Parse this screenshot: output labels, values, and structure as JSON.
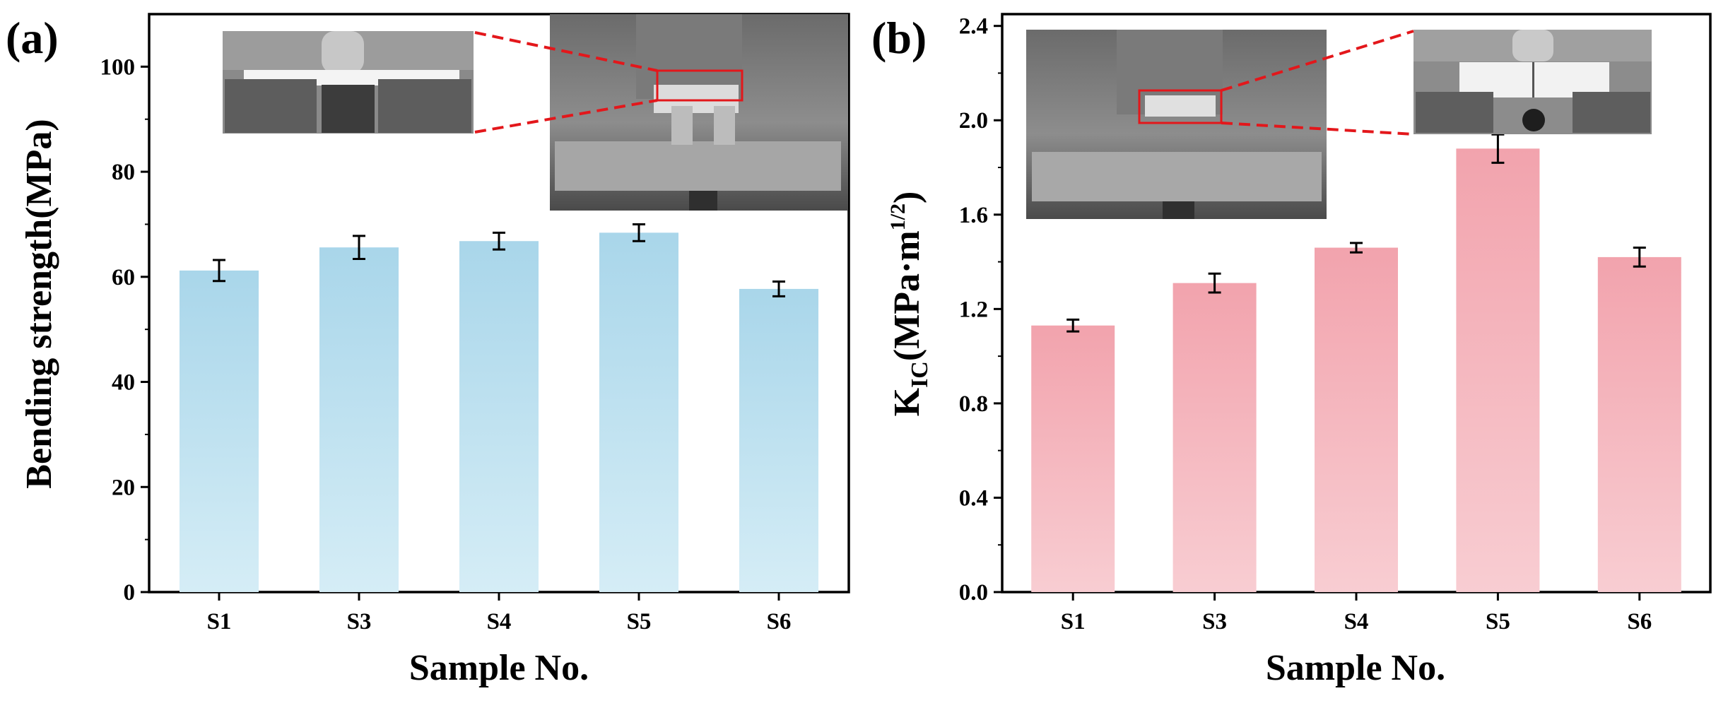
{
  "chart_data": [
    {
      "panel_label": "(a)",
      "type": "bar",
      "categories": [
        "S1",
        "S3",
        "S4",
        "S5",
        "S6"
      ],
      "values": [
        61.2,
        65.6,
        66.8,
        68.4,
        57.7
      ],
      "errors": [
        2.0,
        2.2,
        1.6,
        1.6,
        1.4
      ],
      "xlabel": "Sample No.",
      "ylabel": "Bending strength(MPa)",
      "ylim": [
        0,
        110
      ],
      "yticks": [
        0,
        20,
        40,
        60,
        80,
        100
      ],
      "ytick_labels": [
        "0",
        "20",
        "40",
        "60",
        "80",
        "100"
      ],
      "bar_color_top": "#a9d6ea",
      "bar_color_bottom": "#d5edf6",
      "grid": false,
      "legend": "none",
      "inset_images": [
        "three-point-bending-closeup",
        "bending-test-fixture"
      ]
    },
    {
      "panel_label": "(b)",
      "type": "bar",
      "categories": [
        "S1",
        "S3",
        "S4",
        "S5",
        "S6"
      ],
      "values": [
        1.13,
        1.31,
        1.46,
        1.88,
        1.42
      ],
      "errors": [
        0.025,
        0.04,
        0.02,
        0.06,
        0.04
      ],
      "xlabel": "Sample No.",
      "ylabel_main": "K",
      "ylabel_sub": "IC",
      "ylabel_unit_pre": "(MPa·m",
      "ylabel_sup": "1/2",
      "ylabel_unit_post": ")",
      "ylim": [
        0,
        2.45
      ],
      "yticks": [
        0,
        0.4,
        0.8,
        1.2,
        1.6,
        2.0,
        2.4
      ],
      "ytick_labels": [
        "0.0",
        "0.4",
        "0.8",
        "1.2",
        "1.6",
        "2.0",
        "2.4"
      ],
      "bar_color_top": "#f2a3ad",
      "bar_color_bottom": "#f8cdd2",
      "grid": false,
      "legend": "none",
      "inset_images": [
        "fracture-toughness-fixture",
        "notched-specimen-closeup"
      ]
    }
  ]
}
